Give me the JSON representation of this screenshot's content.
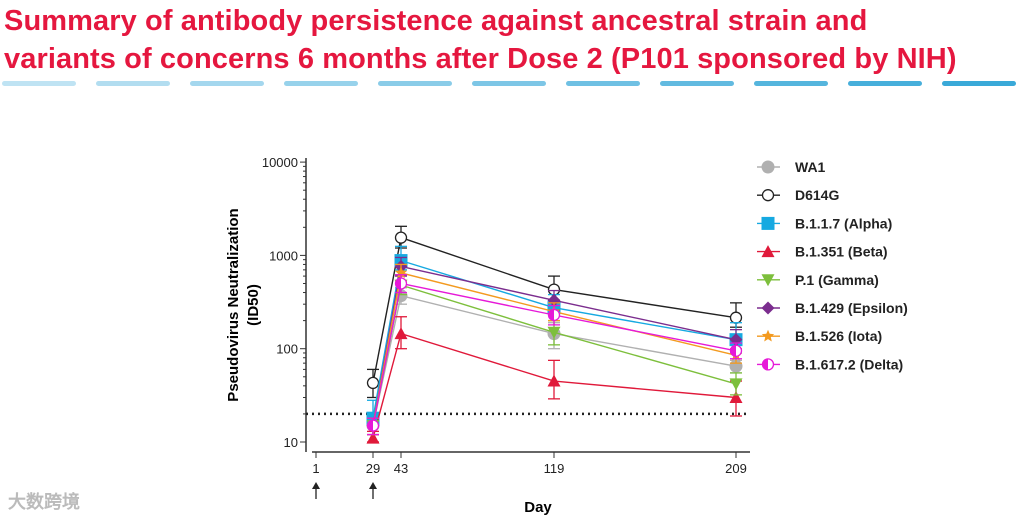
{
  "title_line1": "Summary of antibody persistence against ancestral strain and",
  "title_line2": "variants of concerns 6 months after Dose 2 (P101 sponsored by NIH)",
  "watermark": "大数跨境",
  "colors": {
    "title": "#e5173f",
    "dash_start": "#bfe3f3",
    "dash_end": "#3aa9d8"
  },
  "chart_data": {
    "type": "line",
    "xlabel": "Day",
    "ylabel_line1": "Pseudovirus Neutralization",
    "ylabel_line2": "(ID50)",
    "yscale": "log",
    "ylim": [
      10,
      10000
    ],
    "yticks": [
      {
        "v": 10,
        "label": "10"
      },
      {
        "v": 100,
        "label": "100"
      },
      {
        "v": 1000,
        "label": "1000"
      },
      {
        "v": 10000,
        "label": "10000"
      }
    ],
    "xticks": [
      {
        "v": 1,
        "label": "1"
      },
      {
        "v": 29,
        "label": "29"
      },
      {
        "v": 43,
        "label": "43"
      },
      {
        "v": 119,
        "label": "119"
      },
      {
        "v": 209,
        "label": "209"
      }
    ],
    "dose_arrows_at_days": [
      1,
      29
    ],
    "limit_of_detection": 20,
    "legend_position": "right",
    "x": [
      29,
      43,
      119,
      209
    ],
    "series": [
      {
        "name": "WA1",
        "color": "#b0b0b0",
        "marker": "circle",
        "values": [
          15,
          370,
          145,
          65
        ],
        "err_low": [
          12,
          300,
          100,
          55
        ],
        "err_high": [
          18,
          450,
          190,
          75
        ]
      },
      {
        "name": "D614G",
        "color": "#222222",
        "marker": "open-circle",
        "values": [
          43,
          1550,
          430,
          215
        ],
        "err_low": [
          30,
          1200,
          330,
          170
        ],
        "err_high": [
          60,
          2050,
          600,
          310
        ]
      },
      {
        "name": "B.1.1.7 (Alpha)",
        "color": "#16a9e1",
        "marker": "square",
        "values": [
          18,
          880,
          275,
          125
        ],
        "err_low": [
          12,
          700,
          200,
          90
        ],
        "err_high": [
          28,
          1250,
          380,
          190
        ]
      },
      {
        "name": "B.1.351 (Beta)",
        "color": "#e0193a",
        "marker": "triangle-up",
        "values": [
          11,
          145,
          45,
          30
        ],
        "err_low": [
          10,
          100,
          29,
          19
        ],
        "err_high": [
          13,
          220,
          75,
          45
        ]
      },
      {
        "name": "P.1 (Gamma)",
        "color": "#7dbf3c",
        "marker": "triangle-down",
        "values": [
          15,
          480,
          150,
          42
        ],
        "err_low": [
          12,
          380,
          110,
          32
        ],
        "err_high": [
          18,
          620,
          200,
          55
        ]
      },
      {
        "name": "B.1.429 (Epsilon)",
        "color": "#7b2d8e",
        "marker": "diamond",
        "values": [
          15,
          760,
          330,
          125
        ],
        "err_low": [
          12,
          600,
          260,
          100
        ],
        "err_high": [
          18,
          950,
          420,
          160
        ]
      },
      {
        "name": "B.1.526 (Iota)",
        "color": "#f39a1f",
        "marker": "star",
        "values": [
          15,
          650,
          250,
          85
        ],
        "err_low": [
          12,
          520,
          200,
          70
        ],
        "err_high": [
          18,
          800,
          310,
          100
        ]
      },
      {
        "name": "B.1.617.2 (Delta)",
        "color": "#e619d8",
        "marker": "half-circle",
        "values": [
          15,
          500,
          230,
          95
        ],
        "err_low": [
          12,
          400,
          180,
          78
        ],
        "err_high": [
          18,
          620,
          290,
          115
        ]
      }
    ]
  }
}
